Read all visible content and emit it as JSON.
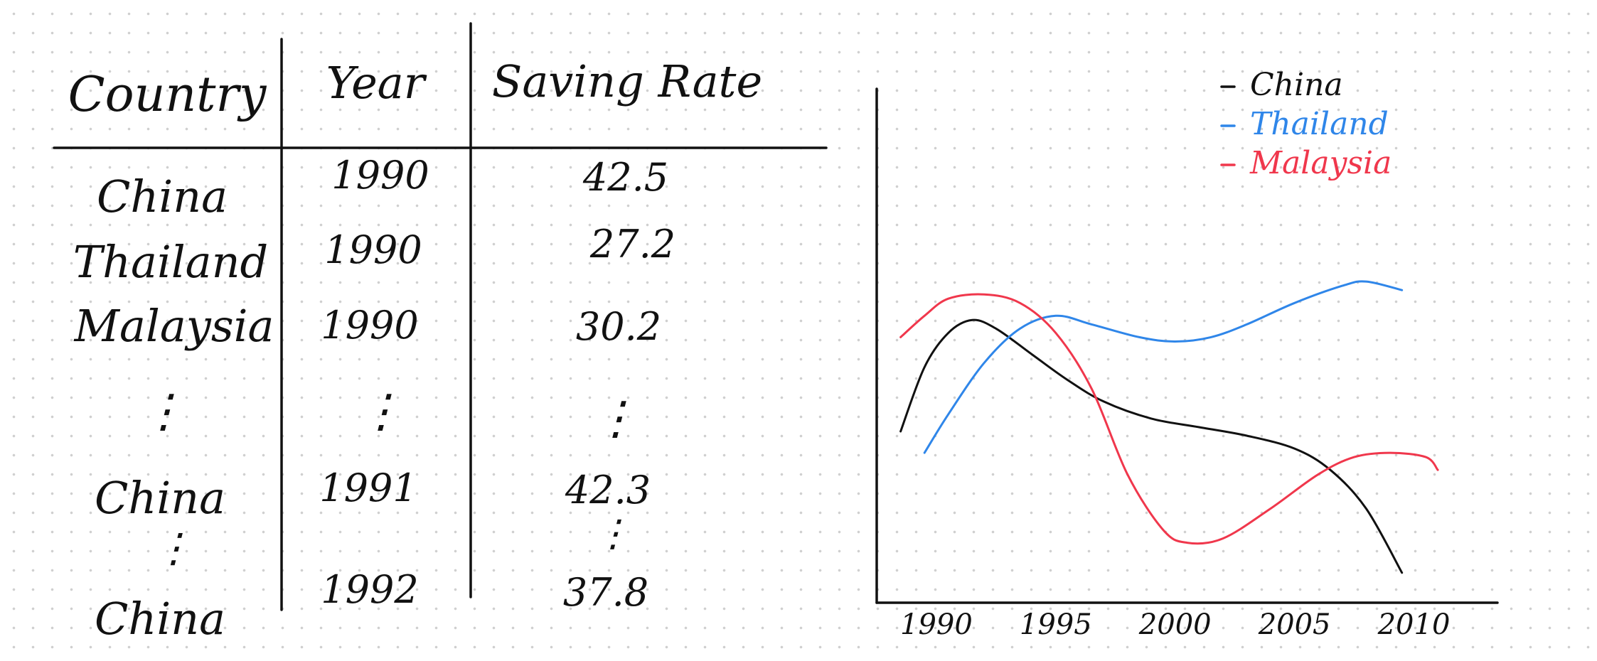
{
  "table": {
    "headers": [
      "Country",
      "Year",
      "Saving Rate"
    ],
    "rows": [
      [
        "China",
        "1990",
        "42.5"
      ],
      [
        "Thailand",
        "1990",
        "27.2"
      ],
      [
        "Malaysia",
        "1990",
        "30.2"
      ],
      [
        "⋮",
        "⋮",
        "⋮"
      ],
      [
        "China",
        "1991",
        "42.3"
      ],
      [
        "⋮",
        "",
        "⋮"
      ],
      [
        "China",
        "1992",
        "37.8"
      ]
    ]
  },
  "chart_data": {
    "type": "line",
    "x_ticks": [
      "1990",
      "1995",
      "2000",
      "2005",
      "2010"
    ],
    "xlim": [
      1987.5,
      2013.5
    ],
    "ylim": [
      0,
      60
    ],
    "grid": false,
    "legend_position": "top-right",
    "series": [
      {
        "name": "China",
        "color": "#111111",
        "points": [
          [
            1988.5,
            20
          ],
          [
            1989.5,
            27.5
          ],
          [
            1990.5,
            31.5
          ],
          [
            1991.5,
            33
          ],
          [
            1992.5,
            32
          ],
          [
            1994,
            29
          ],
          [
            1995.5,
            26
          ],
          [
            1997,
            23.5
          ],
          [
            1999,
            21.5
          ],
          [
            2001,
            20.5
          ],
          [
            2003,
            19.5
          ],
          [
            2005,
            18
          ],
          [
            2006.5,
            15.5
          ],
          [
            2008,
            11
          ],
          [
            2009.5,
            3.5
          ]
        ]
      },
      {
        "name": "Thailand",
        "color": "#2f86e9",
        "points": [
          [
            1989.5,
            17.5
          ],
          [
            1990.5,
            22
          ],
          [
            1992,
            28
          ],
          [
            1993.5,
            32
          ],
          [
            1995,
            33.5
          ],
          [
            1996.5,
            32.5
          ],
          [
            1998.5,
            31
          ],
          [
            2000,
            30.5
          ],
          [
            2001.5,
            31
          ],
          [
            2003,
            32.5
          ],
          [
            2005,
            35
          ],
          [
            2007,
            37
          ],
          [
            2008,
            37.5
          ],
          [
            2009.5,
            36.5
          ]
        ]
      },
      {
        "name": "Malaysia",
        "color": "#f0374c",
        "points": [
          [
            1988.5,
            31
          ],
          [
            1989.5,
            33.5
          ],
          [
            1990.5,
            35.5
          ],
          [
            1992,
            36
          ],
          [
            1993.5,
            35
          ],
          [
            1995,
            31.5
          ],
          [
            1996.5,
            25
          ],
          [
            1998,
            15
          ],
          [
            1999.5,
            8.5
          ],
          [
            2000.5,
            7
          ],
          [
            2002,
            7.5
          ],
          [
            2004,
            11
          ],
          [
            2006,
            15
          ],
          [
            2007.5,
            17
          ],
          [
            2009,
            17.5
          ],
          [
            2010.5,
            17
          ],
          [
            2011,
            15.5
          ]
        ]
      }
    ]
  }
}
